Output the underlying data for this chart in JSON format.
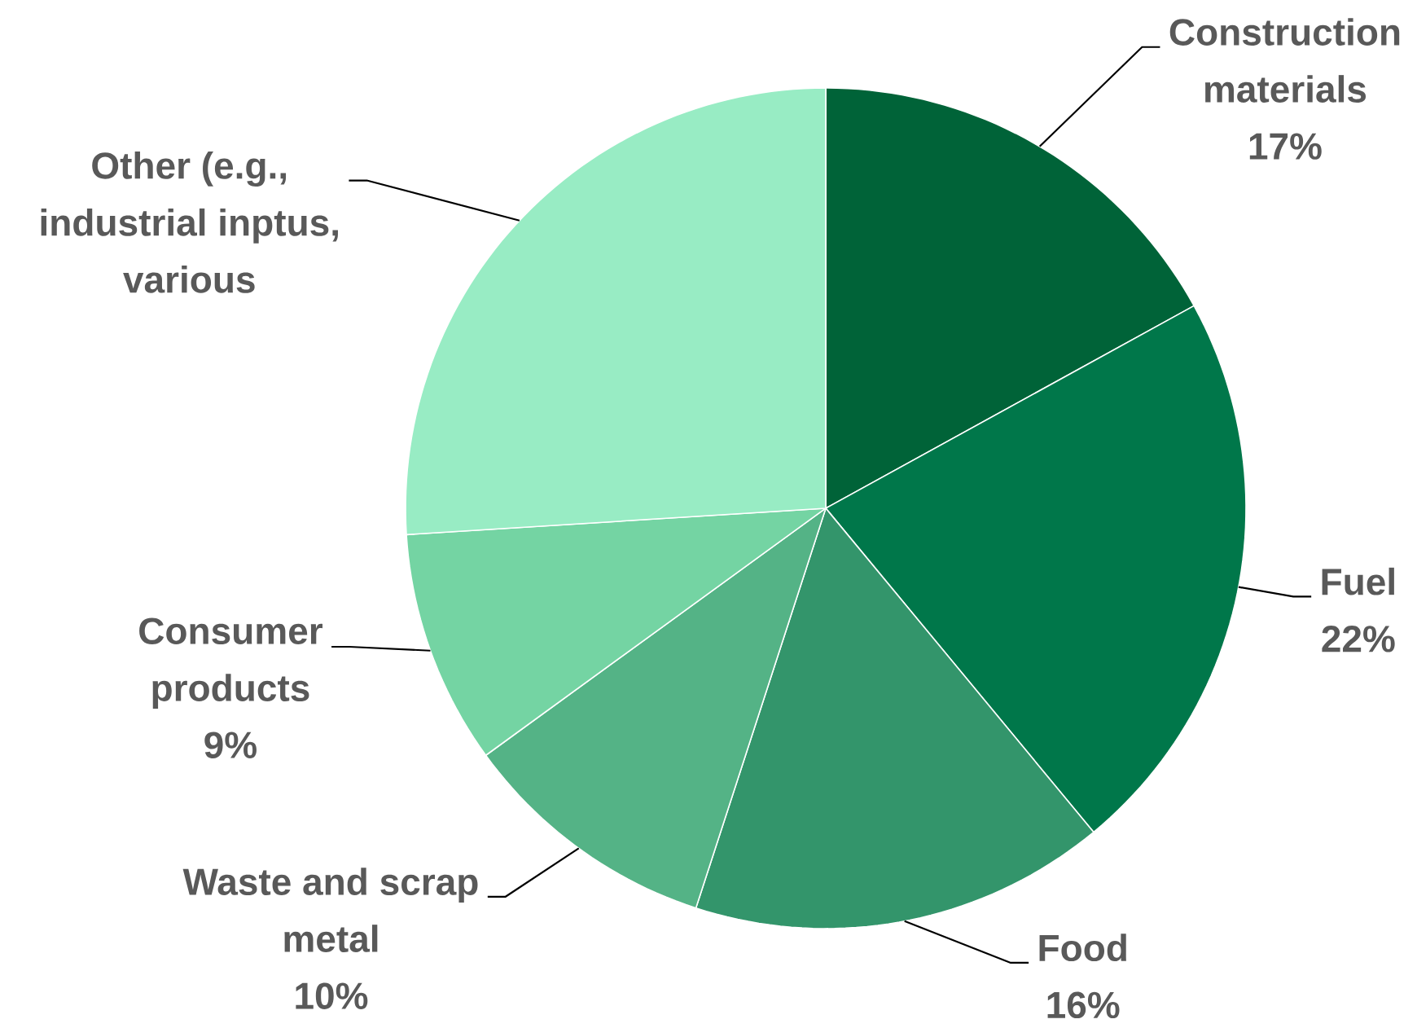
{
  "chart_data": {
    "type": "pie",
    "categories": [
      "Construction materials",
      "Fuel",
      "Food",
      "Waste and scrap metal",
      "Consumer products",
      "Other (e.g., industrial inptus, various"
    ],
    "values": [
      17,
      22,
      16,
      10,
      9,
      26
    ],
    "value_labels": [
      "17%",
      "22%",
      "16%",
      "10%",
      "9%",
      null
    ],
    "colors": [
      "#006338",
      "#00774a",
      "#33956b",
      "#54b386",
      "#74d4a3",
      "#98ecc4"
    ]
  }
}
